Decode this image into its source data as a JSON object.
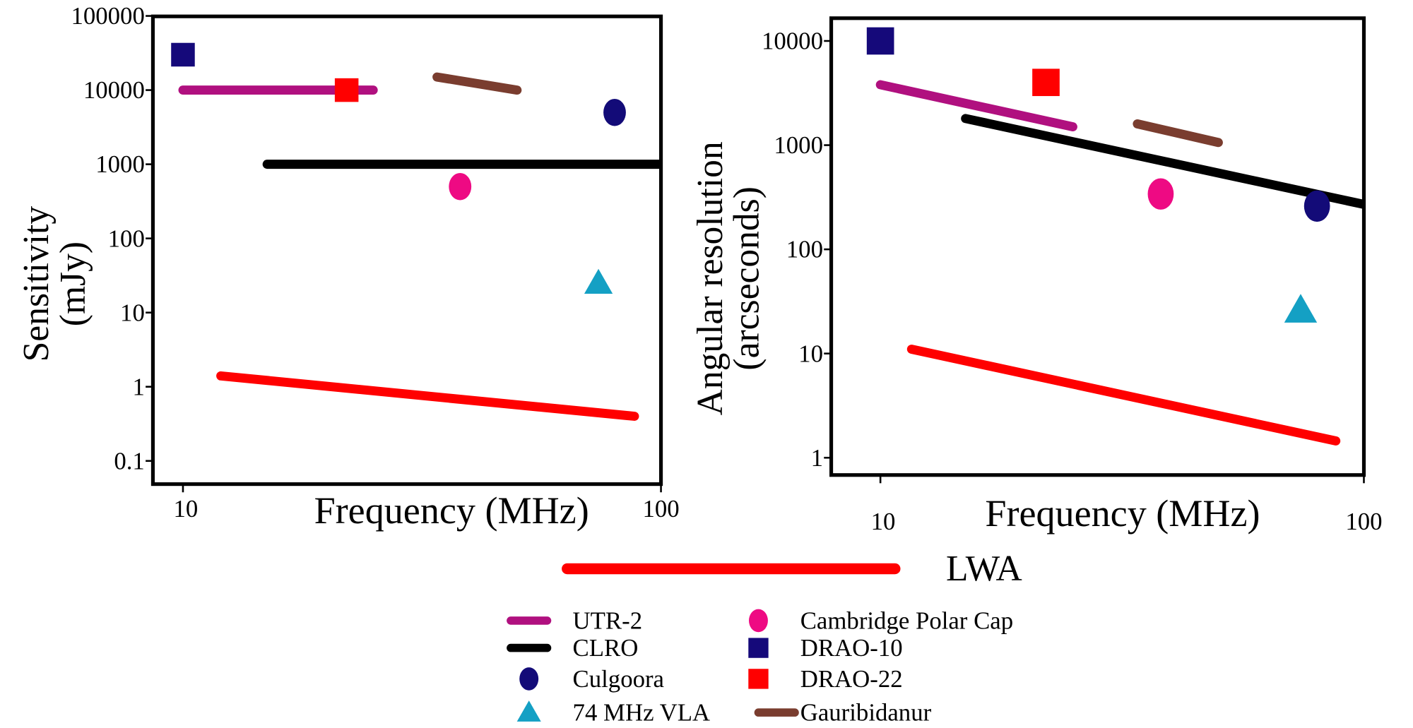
{
  "chart_data": [
    {
      "type": "scatter",
      "xlabel": "Frequency (MHz)",
      "ylabel_lines": [
        "Sensitivity",
        "(mJy)"
      ],
      "x_scale": "log",
      "y_scale": "log",
      "xlim": [
        10,
        100
      ],
      "ylim": [
        0.1,
        100000
      ],
      "x_ticks": [
        "10",
        "100"
      ],
      "y_ticks": [
        "0.1",
        "1",
        "10",
        "100",
        "1000",
        "10000",
        "100000"
      ],
      "grid": false,
      "series": [
        {
          "name": "UTR-2",
          "kind": "line",
          "color": "#b0107f",
          "points": [
            [
              10,
              10000
            ],
            [
              25,
              10000
            ]
          ]
        },
        {
          "name": "CLRO",
          "kind": "line",
          "color": "#000000",
          "points": [
            [
              15,
              1000
            ],
            [
              100,
              1000
            ]
          ]
        },
        {
          "name": "Gauribidanur",
          "kind": "line",
          "color": "#7a3d2f",
          "points": [
            [
              34,
              15000
            ],
            [
              50,
              10000
            ]
          ]
        },
        {
          "name": "LWA",
          "kind": "line",
          "color": "#ff0000",
          "points": [
            [
              12,
              1.4
            ],
            [
              88,
              0.4
            ]
          ]
        },
        {
          "name": "DRAO-10",
          "kind": "square",
          "color": "#15097a",
          "points": [
            [
              10,
              30000
            ]
          ]
        },
        {
          "name": "DRAO-22",
          "kind": "square",
          "color": "#ff0000",
          "points": [
            [
              22,
              10000
            ]
          ]
        },
        {
          "name": "Culgoora",
          "kind": "circle",
          "color": "#130b78",
          "points": [
            [
              80,
              5000
            ]
          ]
        },
        {
          "name": "Cambridge Polar Cap",
          "kind": "circle",
          "color": "#ee0a83",
          "points": [
            [
              38,
              500
            ]
          ]
        },
        {
          "name": "74 MHz VLA",
          "kind": "triangle",
          "color": "#14a0c4",
          "points": [
            [
              74,
              25
            ]
          ]
        }
      ]
    },
    {
      "type": "scatter",
      "xlabel": "Frequency (MHz)",
      "ylabel_lines": [
        "Angular resolution",
        "(arcseconds)"
      ],
      "x_scale": "log",
      "y_scale": "log",
      "xlim": [
        10,
        100
      ],
      "ylim": [
        1,
        10000
      ],
      "x_ticks": [
        "10",
        "100"
      ],
      "y_ticks": [
        "1",
        "10",
        "100",
        "1000",
        "10000"
      ],
      "grid": false,
      "series": [
        {
          "name": "UTR-2",
          "kind": "line",
          "color": "#b0107f",
          "points": [
            [
              10,
              3800
            ],
            [
              25,
              1500
            ]
          ]
        },
        {
          "name": "CLRO",
          "kind": "line",
          "color": "#000000",
          "points": [
            [
              15,
              1800
            ],
            [
              100,
              270
            ]
          ]
        },
        {
          "name": "Gauribidanur",
          "kind": "line",
          "color": "#7a3d2f",
          "points": [
            [
              34,
              1600
            ],
            [
              50,
              1060
            ]
          ]
        },
        {
          "name": "LWA",
          "kind": "line",
          "color": "#ff0000",
          "points": [
            [
              11.6,
              11
            ],
            [
              87.5,
              1.45
            ]
          ]
        },
        {
          "name": "DRAO-10",
          "kind": "square",
          "color": "#15097a",
          "points": [
            [
              10,
              10000
            ]
          ]
        },
        {
          "name": "DRAO-22",
          "kind": "square",
          "color": "#ff0000",
          "points": [
            [
              22,
              4000
            ]
          ]
        },
        {
          "name": "Culgoora",
          "kind": "circle",
          "color": "#130b78",
          "points": [
            [
              80,
              260
            ]
          ]
        },
        {
          "name": "Cambridge Polar Cap",
          "kind": "circle",
          "color": "#ee0a83",
          "points": [
            [
              38,
              340
            ]
          ]
        },
        {
          "name": "74 MHz VLA",
          "kind": "triangle",
          "color": "#14a0c4",
          "points": [
            [
              74,
              26
            ]
          ]
        }
      ]
    }
  ],
  "legend": {
    "placement": "bottom",
    "featured": {
      "label": "LWA",
      "kind": "line",
      "color": "#ff0000"
    },
    "columns": [
      [
        {
          "label": "UTR-2",
          "kind": "line",
          "color": "#b0107f"
        },
        {
          "label": "CLRO",
          "kind": "line",
          "color": "#000000"
        },
        {
          "label": "Culgoora",
          "kind": "circle",
          "color": "#130b78"
        },
        {
          "label": "74 MHz VLA",
          "kind": "triangle",
          "color": "#14a0c4"
        }
      ],
      [
        {
          "label": "Cambridge Polar Cap",
          "kind": "circle",
          "color": "#ee0a83"
        },
        {
          "label": "DRAO-10",
          "kind": "square",
          "color": "#15097a"
        },
        {
          "label": "DRAO-22",
          "kind": "square",
          "color": "#ff0000"
        },
        {
          "label": "Gauribidanur",
          "kind": "line",
          "color": "#7a3d2f"
        }
      ]
    ]
  }
}
